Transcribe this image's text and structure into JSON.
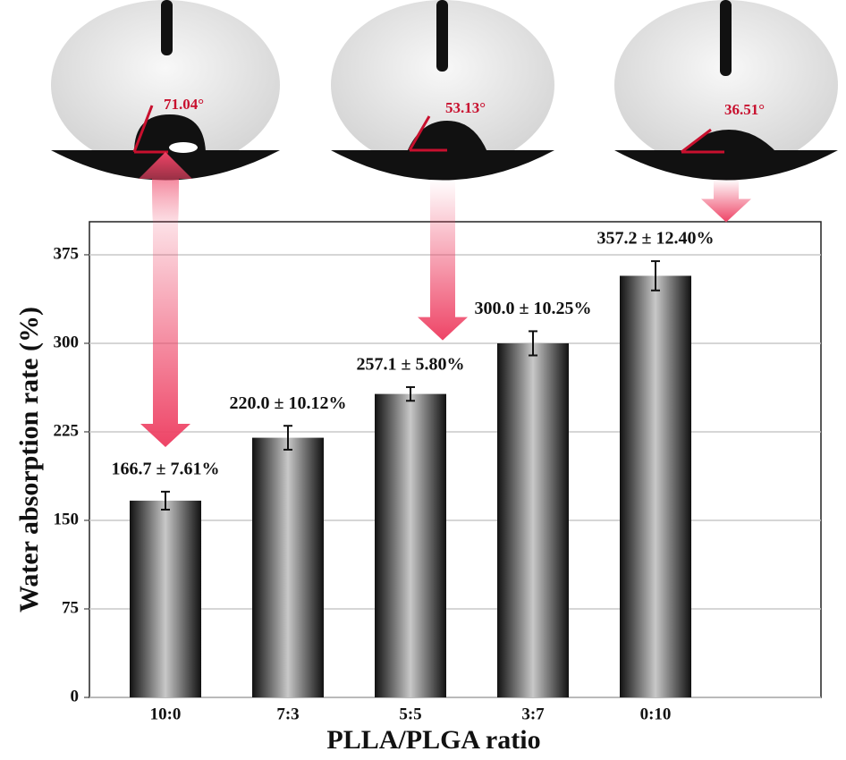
{
  "chart_data": {
    "type": "bar",
    "categories": [
      "10:0",
      "7:3",
      "5:5",
      "3:7",
      "0:10"
    ],
    "values": [
      166.7,
      220.0,
      257.1,
      300.0,
      357.2
    ],
    "errors": [
      7.61,
      10.12,
      5.8,
      10.25,
      12.4
    ],
    "value_labels": [
      "166.7 ± 7.61%",
      "220.0 ± 10.12%",
      "257.1 ± 5.80%",
      "300.0 ± 10.25%",
      "357.2 ± 12.40%"
    ],
    "ylabel": "Water absorption rate (%)",
    "xlabel": "PLLA/PLGA ratio",
    "ylim": [
      0,
      403
    ],
    "yticks": [
      0,
      75,
      150,
      225,
      300,
      375
    ],
    "grid": true,
    "annotations": [
      "71.04°",
      "53.13°",
      "36.51°"
    ]
  }
}
